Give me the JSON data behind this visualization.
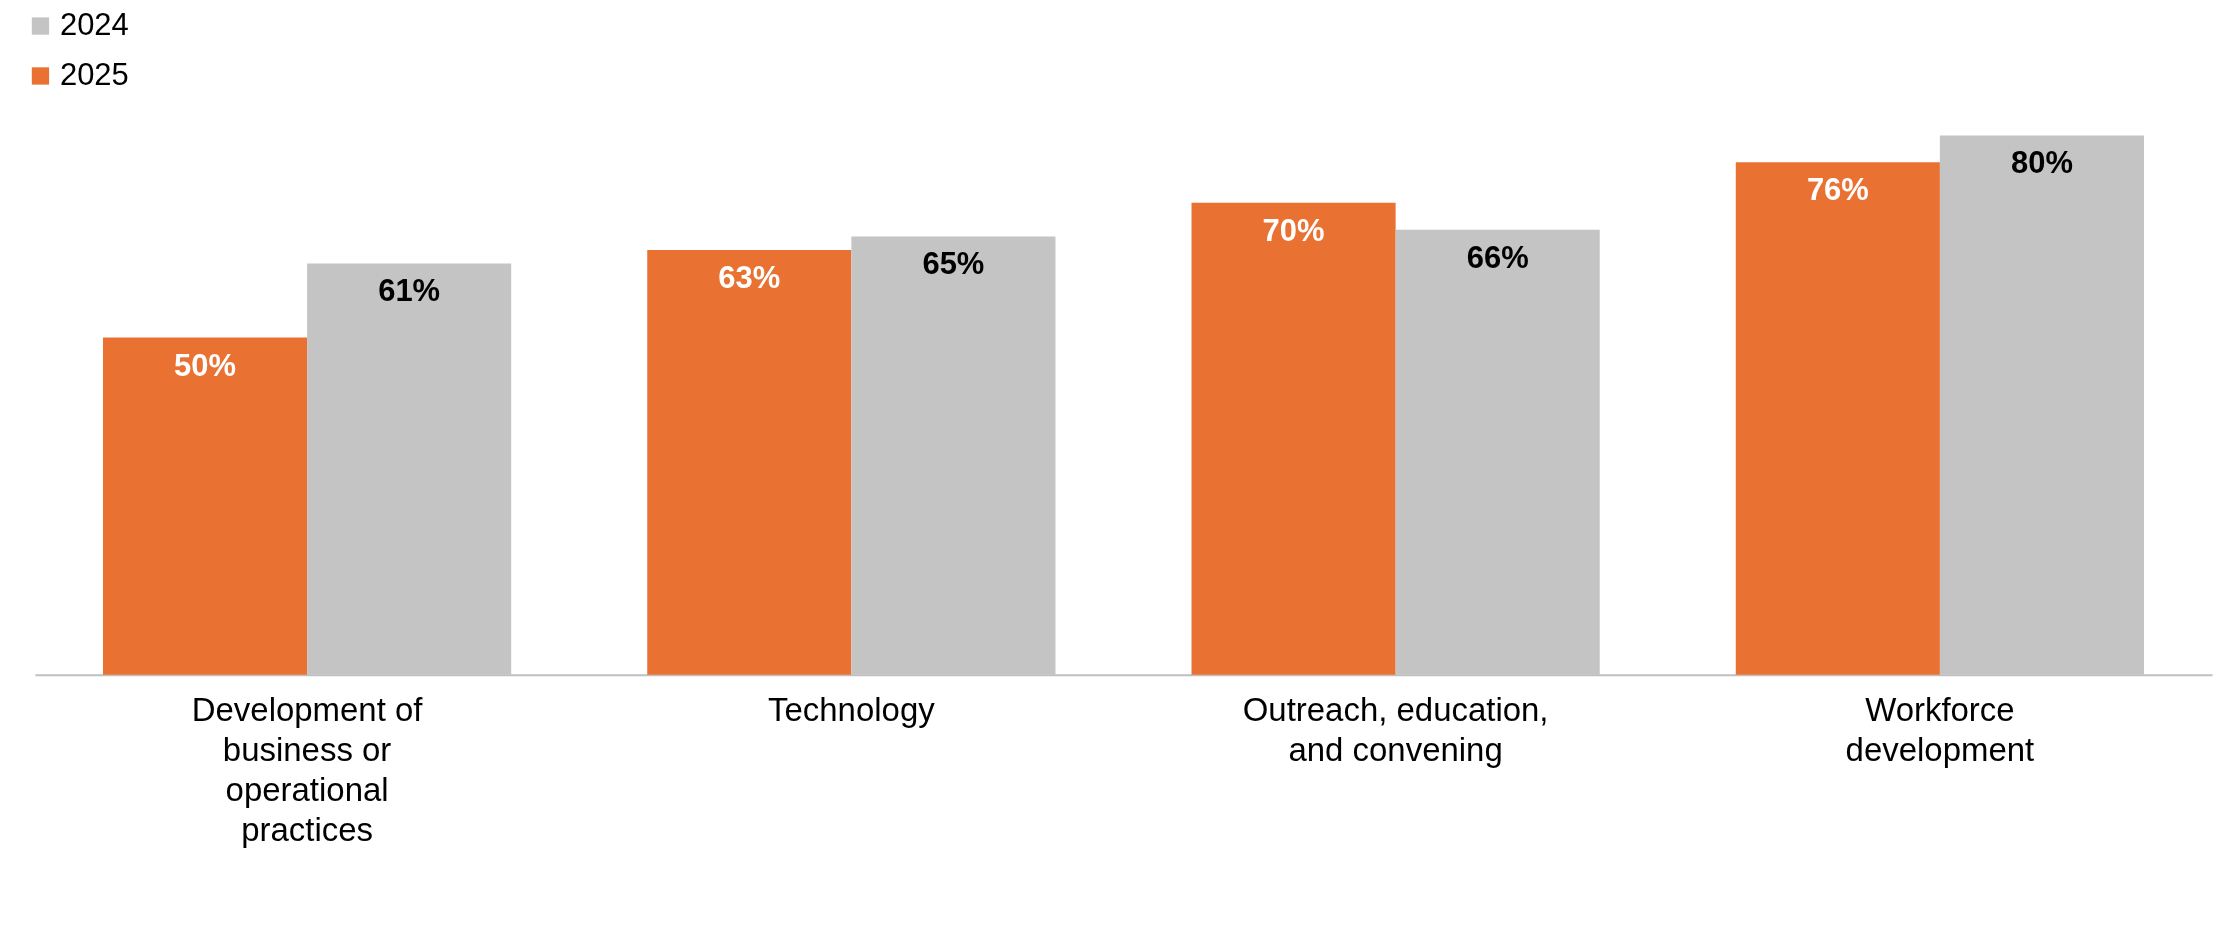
{
  "chart_data": {
    "type": "bar",
    "categories": [
      "Development of business or operational practices",
      "Technology",
      "Outreach, education, and convening",
      "Workforce development"
    ],
    "series": [
      {
        "name": "2025",
        "color": "#e97132",
        "values": [
          50,
          63,
          70,
          76
        ],
        "value_labels": [
          "50%",
          "63%",
          "70%",
          "76%"
        ]
      },
      {
        "name": "2024",
        "color": "#c4c4c4",
        "values": [
          61,
          65,
          66,
          80
        ],
        "value_labels": [
          "61%",
          "65%",
          "66%",
          "80%"
        ]
      }
    ],
    "legend": "top left",
    "grid": false
  }
}
